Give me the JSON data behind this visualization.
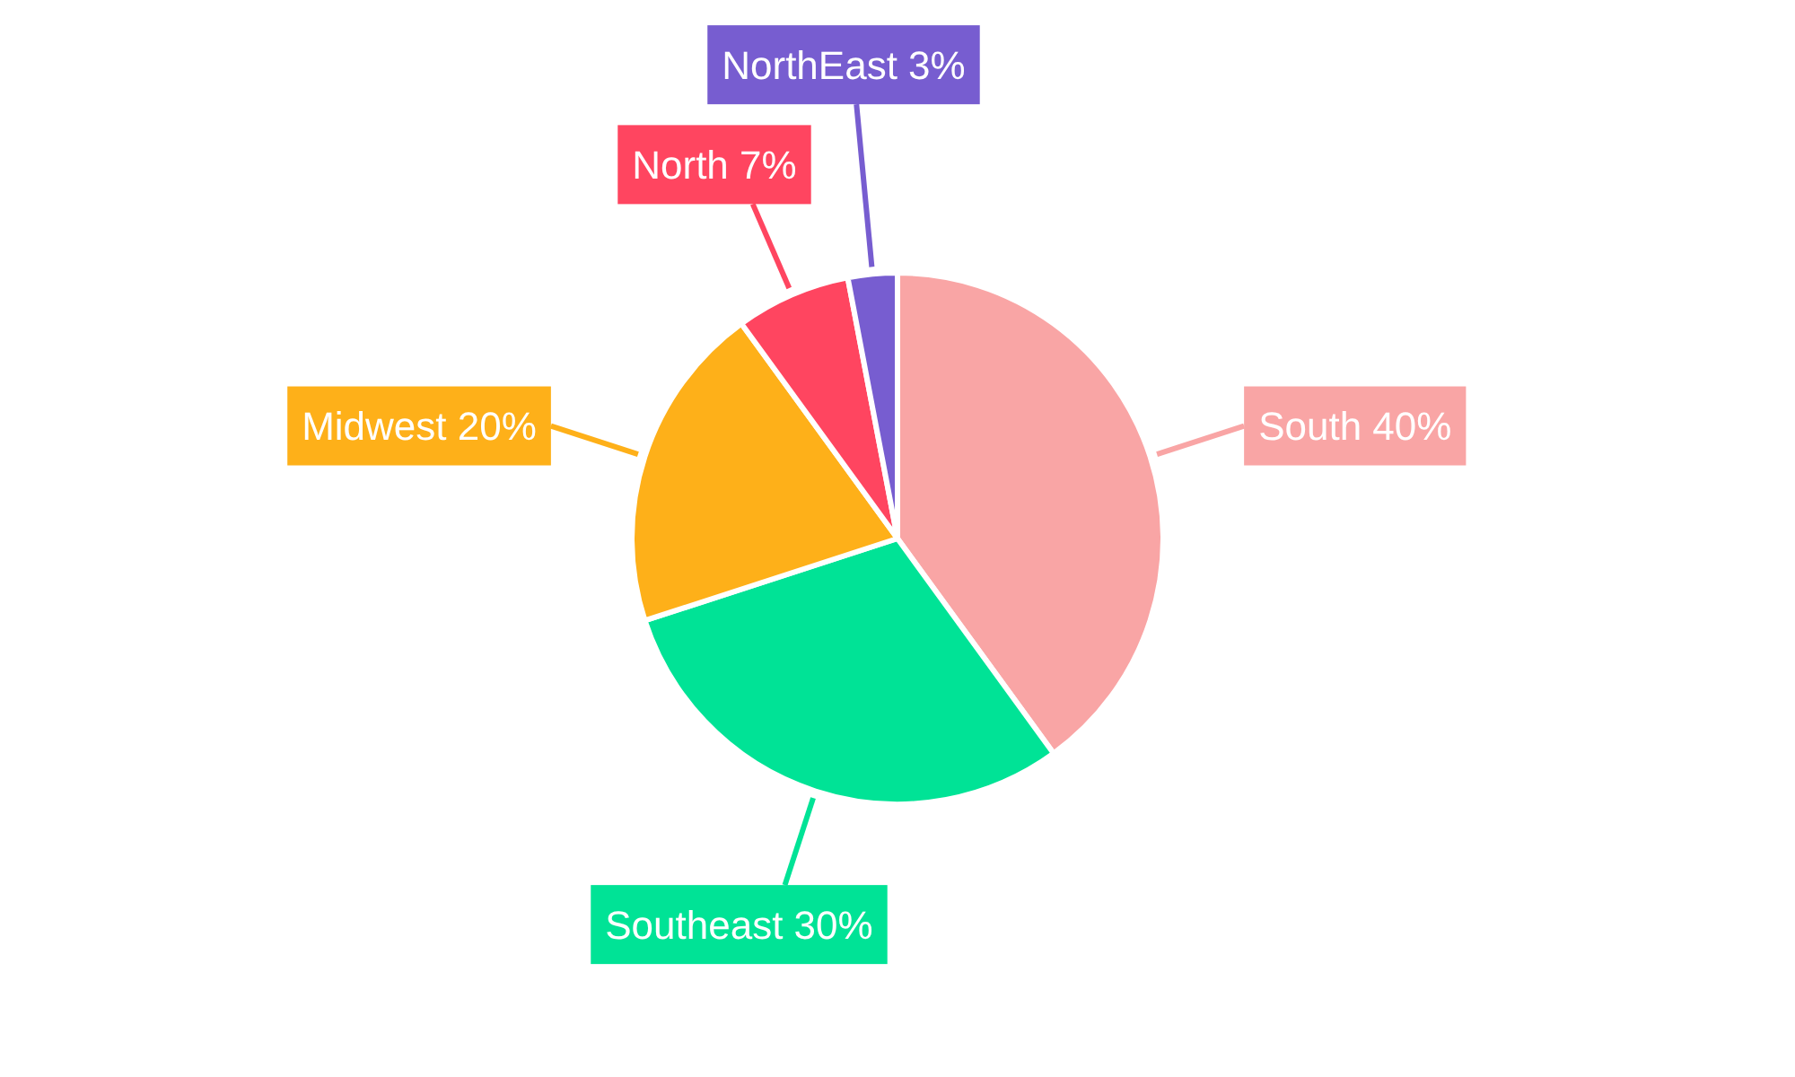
{
  "chart_data": {
    "type": "pie",
    "categories": [
      "South",
      "Southeast",
      "Midwest",
      "North",
      "NorthEast"
    ],
    "values": [
      40,
      30,
      20,
      7,
      3
    ],
    "colors": [
      "#f9a5a5",
      "#00e396",
      "#feb019",
      "#ff4560",
      "#775dd0"
    ],
    "value_labels": [
      "40%",
      "30%",
      "20%",
      "7%",
      "3%"
    ]
  }
}
